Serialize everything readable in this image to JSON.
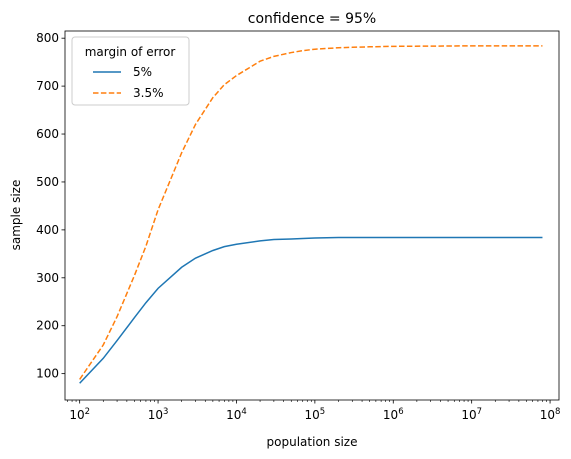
{
  "chart_data": {
    "type": "line",
    "title": "confidence = 95%",
    "xlabel": "population size",
    "ylabel": "sample size",
    "xscale": "log",
    "xlim": [
      65,
      130000000
    ],
    "ylim": [
      45,
      815
    ],
    "xticks": [
      {
        "value": 100,
        "base": "10",
        "exp": "2"
      },
      {
        "value": 1000,
        "base": "10",
        "exp": "3"
      },
      {
        "value": 10000,
        "base": "10",
        "exp": "4"
      },
      {
        "value": 100000,
        "base": "10",
        "exp": "5"
      },
      {
        "value": 1000000,
        "base": "10",
        "exp": "6"
      },
      {
        "value": 10000000,
        "base": "10",
        "exp": "7"
      },
      {
        "value": 100000000,
        "base": "10",
        "exp": "8"
      }
    ],
    "yticks": [
      {
        "value": 100,
        "label": "100"
      },
      {
        "value": 200,
        "label": "200"
      },
      {
        "value": 300,
        "label": "300"
      },
      {
        "value": 400,
        "label": "400"
      },
      {
        "value": 500,
        "label": "500"
      },
      {
        "value": 600,
        "label": "600"
      },
      {
        "value": 700,
        "label": "700"
      },
      {
        "value": 800,
        "label": "800"
      }
    ],
    "grid": false,
    "legend": {
      "title": "margin of error",
      "placement": "top-left"
    },
    "x": [
      100,
      200,
      300,
      500,
      700,
      1000,
      2000,
      3000,
      5000,
      7000,
      10000,
      20000,
      30000,
      50000,
      70000,
      100000,
      200000,
      300000,
      500000,
      1000000,
      10000000,
      80000000
    ],
    "series": [
      {
        "name": "5%",
        "color": "#1f77b4",
        "dash": "solid",
        "values": [
          80,
          132,
          169,
          217,
          248,
          278,
          322,
          341,
          357,
          365,
          370,
          377,
          380,
          381,
          382,
          383,
          384,
          384,
          384,
          384,
          384,
          384
        ]
      },
      {
        "name": "3.5%",
        "color": "#ff7f0e",
        "dash": "dashed",
        "values": [
          88,
          160,
          219,
          305,
          366,
          442,
          561,
          620,
          676,
          703,
          722,
          752,
          762,
          770,
          774,
          777,
          780,
          781,
          782,
          783,
          784,
          784
        ]
      }
    ]
  }
}
